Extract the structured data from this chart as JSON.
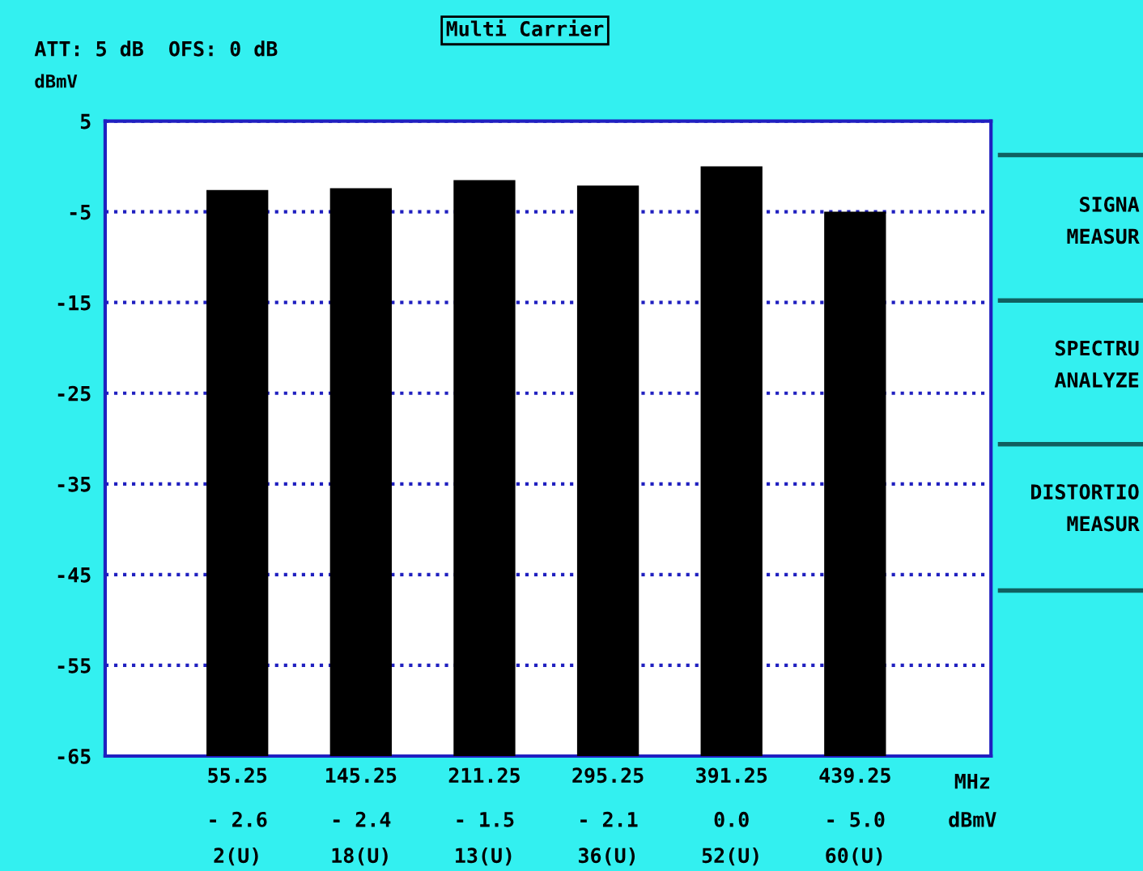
{
  "chart_data": {
    "type": "bar",
    "title": "Multi Carrier",
    "subtitle": "ATT: 5 dB  OFS: 0 dB",
    "ylabel": "dBmV",
    "categories": [
      "55.25",
      "145.25",
      "211.25",
      "295.25",
      "391.25",
      "439.25"
    ],
    "values": [
      62.4,
      62.6,
      63.5,
      62.9,
      65.0,
      60.0
    ],
    "base": [
      -65,
      -65,
      -65,
      -65,
      -65,
      -65
    ],
    "value_labels": [
      "- 2.6",
      "- 2.4",
      "- 1.5",
      "- 2.1",
      "0.0",
      "- 5.0"
    ],
    "color": "#000000",
    "ylim": [
      -65,
      5
    ],
    "yticks": [
      5,
      -5,
      -15,
      -25,
      -35,
      -45,
      -55,
      -65
    ],
    "grid": "y",
    "line_style": "dotted",
    "annotations": [
      "MHz",
      "dBmV",
      "2(U)",
      "18(U)",
      "13(U)",
      "36(U)",
      "52(U)",
      "60(U)",
      "SIGNA\nMEASUR",
      "SPECTRU\nANALYZE",
      "DISTORTIO\nMEASUR"
    ]
  }
}
